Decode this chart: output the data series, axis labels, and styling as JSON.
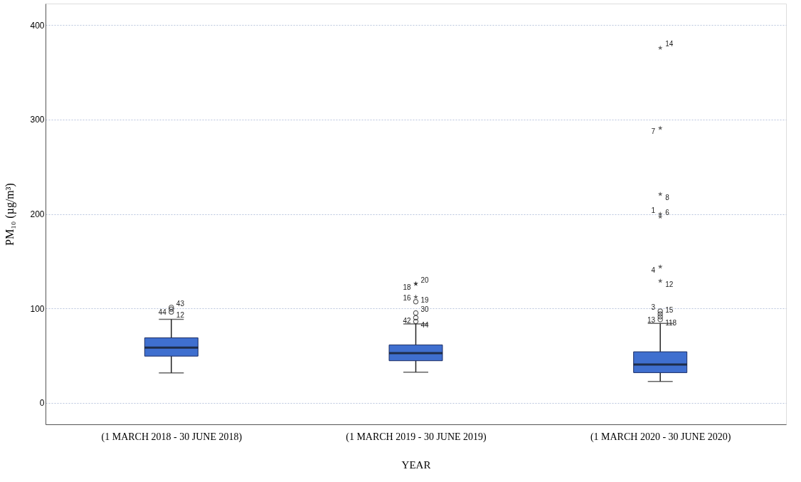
{
  "chart_data": {
    "type": "box",
    "categories": [
      "(1 MARCH 2018 - 30 JUNE 2018)",
      "(1 MARCH 2019 - 30 JUNE 2019)",
      "(1 MARCH 2020 - 30 JUNE 2020)"
    ],
    "xlabel": "YEAR",
    "ylabel": "PM₁₀ (µg/m³)",
    "color": "#3f6fcf",
    "boxes": [
      {
        "low": 31.5,
        "q1": 49.3,
        "median": 58.4,
        "q3": 68.7,
        "high": 88.3,
        "outliers": [
          101,
          99,
          96
        ]
      },
      {
        "low": 32.3,
        "q1": 44.4,
        "median": 52.5,
        "q3": 61.2,
        "high": 83.5,
        "outliers": [
          126,
          126,
          112,
          107,
          95,
          90,
          86
        ]
      },
      {
        "low": 22.4,
        "q1": 31.8,
        "median": 40.4,
        "q3": 53.9,
        "high": 84,
        "outliers": [
          376,
          291,
          221,
          200,
          197,
          144,
          129,
          97,
          94,
          91,
          88
        ]
      }
    ],
    "ylim": [
      -23,
      423
    ],
    "yticks": [
      0,
      100,
      200,
      300,
      400
    ],
    "grid": "y",
    "annotations": [
      "43",
      "44",
      "12",
      "20",
      "18",
      "19",
      "16",
      "30",
      "42",
      "44",
      "14",
      "7",
      "8",
      "1",
      "6",
      "4",
      "12",
      "3",
      "15",
      "13",
      "118"
    ]
  }
}
